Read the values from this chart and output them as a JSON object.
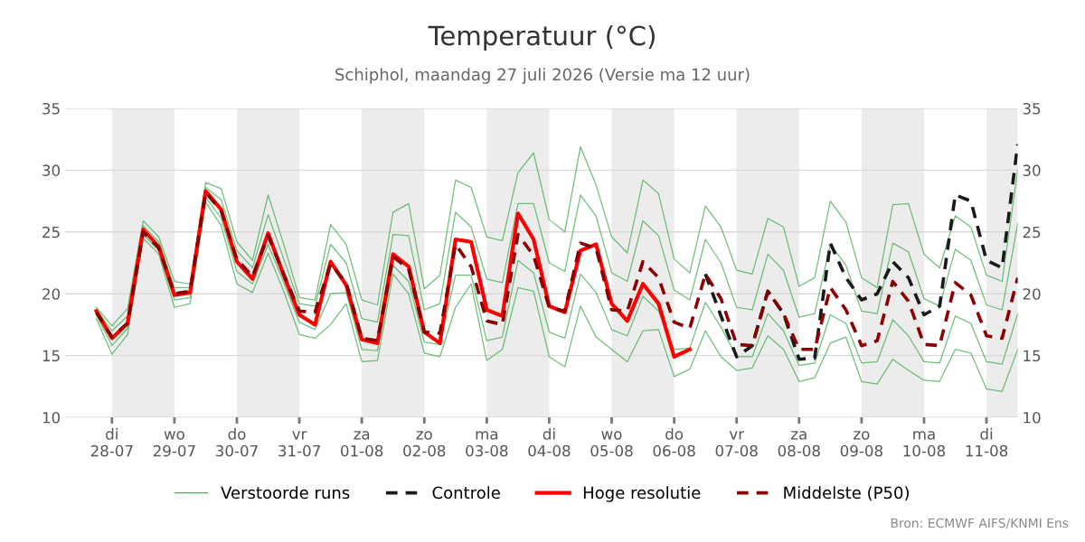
{
  "chart_data": {
    "type": "line",
    "title": "Temperatuur (°C)",
    "subtitle": "Schiphol, maandag 27 juli 2026 (Versie ma 12 uur)",
    "x": [
      "2026-07-27T18:00",
      "2026-07-28T00:00",
      "2026-07-28T06:00",
      "2026-07-28T12:00",
      "2026-07-28T18:00",
      "2026-07-29T00:00",
      "2026-07-29T06:00",
      "2026-07-29T12:00",
      "2026-07-29T18:00",
      "2026-07-30T00:00",
      "2026-07-30T06:00",
      "2026-07-30T12:00",
      "2026-07-30T18:00",
      "2026-07-31T00:00",
      "2026-07-31T06:00",
      "2026-07-31T12:00",
      "2026-07-31T18:00",
      "2026-08-01T00:00",
      "2026-08-01T06:00",
      "2026-08-01T12:00",
      "2026-08-01T18:00",
      "2026-08-02T00:00",
      "2026-08-02T06:00",
      "2026-08-02T12:00",
      "2026-08-02T18:00",
      "2026-08-03T00:00",
      "2026-08-03T06:00",
      "2026-08-03T12:00",
      "2026-08-03T18:00",
      "2026-08-04T00:00",
      "2026-08-04T06:00",
      "2026-08-04T12:00",
      "2026-08-04T18:00",
      "2026-08-05T00:00",
      "2026-08-05T06:00",
      "2026-08-05T12:00",
      "2026-08-05T18:00",
      "2026-08-06T00:00",
      "2026-08-06T06:00",
      "2026-08-06T12:00",
      "2026-08-06T18:00",
      "2026-08-07T00:00",
      "2026-08-07T06:00",
      "2026-08-07T12:00",
      "2026-08-07T18:00",
      "2026-08-08T00:00",
      "2026-08-08T06:00",
      "2026-08-08T12:00",
      "2026-08-08T18:00",
      "2026-08-09T00:00",
      "2026-08-09T06:00",
      "2026-08-09T12:00",
      "2026-08-09T18:00",
      "2026-08-10T00:00",
      "2026-08-10T06:00",
      "2026-08-10T12:00",
      "2026-08-10T18:00",
      "2026-08-11T00:00",
      "2026-08-11T06:00",
      "2026-08-11T12:00"
    ],
    "series": [
      {
        "name": "Verstoorde runs",
        "color": "#4caf5a",
        "line_style": "solid",
        "values": [
          18.9,
          17.4,
          18.8,
          25.9,
          24.6,
          21.0,
          20.8,
          29.0,
          28.5,
          24.2,
          22.7,
          28.0,
          24.0,
          19.7,
          19.5,
          25.6,
          24.0,
          19.5,
          19.1,
          26.6,
          27.3,
          20.4,
          21.5,
          29.2,
          28.6,
          24.6,
          24.3,
          29.8,
          31.4,
          26.0,
          25.0,
          31.9,
          28.8,
          24.6,
          23.3,
          29.2,
          28.1,
          22.8,
          21.7,
          27.1,
          25.4,
          21.9,
          21.6,
          26.1,
          25.4,
          20.6,
          21.3,
          27.5,
          25.8,
          21.3,
          20.5,
          27.2,
          27.3,
          23.2,
          22.1,
          26.3,
          25.4,
          21.5,
          21.0,
          30.0
        ]
      },
      {
        "color": "#4caf5a",
        "line_style": "solid",
        "values": [
          18.7,
          17.0,
          18.2,
          25.5,
          24.2,
          20.5,
          20.5,
          28.6,
          27.6,
          23.5,
          22.1,
          26.4,
          22.8,
          19.2,
          19.0,
          24.0,
          22.5,
          18.0,
          17.7,
          24.8,
          24.7,
          18.7,
          19.2,
          26.6,
          25.4,
          21.2,
          20.9,
          27.3,
          27.3,
          22.5,
          21.8,
          28.0,
          26.3,
          21.7,
          21.0,
          25.9,
          24.7,
          20.3,
          19.5,
          24.4,
          22.5,
          18.9,
          18.7,
          23.2,
          21.9,
          18.1,
          18.4,
          24.0,
          22.3,
          18.6,
          18.4,
          24.1,
          23.4,
          19.6,
          19.0,
          23.6,
          22.7,
          19.1,
          18.7,
          25.7
        ]
      },
      {
        "color": "#4caf5a",
        "line_style": "solid",
        "values": [
          18.3,
          15.8,
          17.2,
          24.8,
          23.5,
          19.5,
          19.7,
          27.8,
          26.1,
          21.8,
          20.8,
          24.0,
          20.9,
          17.7,
          17.1,
          20.0,
          20.1,
          15.5,
          15.4,
          22.3,
          21.0,
          16.1,
          15.9,
          21.5,
          21.5,
          16.2,
          16.5,
          22.7,
          21.7,
          16.9,
          16.4,
          21.6,
          20.1,
          17.1,
          16.6,
          19.8,
          18.6,
          15.5,
          15.6,
          19.3,
          17.3,
          14.9,
          14.9,
          18.4,
          17.0,
          14.2,
          14.4,
          18.3,
          17.6,
          14.4,
          14.5,
          17.9,
          16.6,
          14.5,
          14.4,
          18.2,
          17.6,
          14.5,
          14.3,
          18.4
        ]
      },
      {
        "color": "#4caf5a",
        "line_style": "solid",
        "values": [
          18.0,
          15.1,
          16.7,
          24.5,
          23.2,
          18.9,
          19.2,
          27.4,
          25.5,
          20.8,
          20.1,
          23.3,
          20.2,
          16.7,
          16.4,
          17.5,
          19.2,
          14.5,
          14.6,
          21.6,
          20.0,
          15.2,
          14.9,
          18.9,
          20.8,
          14.6,
          15.5,
          20.5,
          20.2,
          14.9,
          14.1,
          19.0,
          16.5,
          15.5,
          14.5,
          17.0,
          17.1,
          13.3,
          13.9,
          17.0,
          14.9,
          13.8,
          14.0,
          16.6,
          15.5,
          12.9,
          13.2,
          16.0,
          16.5,
          12.9,
          12.7,
          14.7,
          13.8,
          13.0,
          12.9,
          15.5,
          15.2,
          12.3,
          12.1,
          15.5
        ]
      },
      {
        "name": "Controle",
        "color": "#1a1a1a",
        "line_style": "dashed",
        "values": [
          null,
          null,
          null,
          null,
          null,
          null,
          null,
          null,
          null,
          null,
          null,
          null,
          null,
          null,
          null,
          null,
          null,
          null,
          null,
          null,
          null,
          null,
          null,
          null,
          null,
          null,
          null,
          null,
          null,
          null,
          null,
          null,
          null,
          null,
          null,
          null,
          null,
          null,
          null,
          21.6,
          18.2,
          14.9,
          15.8,
          20.2,
          18.4,
          14.7,
          14.8,
          24.1,
          21.3,
          19.5,
          20.0,
          22.6,
          21.3,
          18.3,
          19.0,
          28.0,
          27.5,
          22.7,
          22.1,
          32.1
        ]
      },
      {
        "name": "Hoge resolutie",
        "color": "#ff0000",
        "line_style": "solid",
        "values": [
          18.6,
          16.4,
          17.6,
          25.2,
          23.8,
          19.9,
          20.1,
          28.3,
          26.8,
          22.6,
          21.2,
          24.9,
          21.5,
          18.3,
          17.5,
          22.6,
          20.7,
          16.3,
          16.0,
          23.2,
          22.2,
          16.9,
          16.0,
          24.4,
          24.2,
          18.7,
          18.2,
          26.5,
          24.4,
          19.0,
          18.5,
          23.5,
          24.0,
          19.2,
          17.8,
          20.8,
          19.2,
          14.9,
          15.5,
          null,
          null,
          null,
          null,
          null,
          null,
          null,
          null,
          null,
          null,
          null,
          null,
          null,
          null,
          null,
          null,
          null,
          null,
          null,
          null,
          null
        ]
      },
      {
        "name": "Middelste (P50)",
        "color": "#8b0000",
        "line_style": "dashed",
        "values": [
          18.5,
          16.5,
          17.6,
          25.0,
          23.7,
          20.0,
          20.2,
          28.2,
          26.7,
          22.8,
          21.4,
          24.7,
          21.6,
          18.6,
          18.5,
          22.4,
          20.9,
          16.4,
          16.2,
          23.0,
          22.0,
          16.9,
          16.8,
          24.0,
          22.2,
          17.8,
          17.5,
          24.8,
          23.1,
          18.9,
          18.6,
          24.1,
          23.7,
          18.7,
          18.6,
          22.6,
          21.3,
          17.7,
          17.2,
          21.6,
          19.6,
          15.9,
          15.8,
          20.2,
          18.4,
          15.5,
          15.5,
          20.5,
          18.7,
          15.8,
          16.2,
          21.0,
          19.4,
          15.9,
          15.8,
          20.9,
          19.9,
          16.6,
          16.4,
          21.3
        ]
      }
    ],
    "xlim": [
      "2026-07-27T06:00",
      "2026-08-11T12:00"
    ],
    "xticks": [
      {
        "value": "2026-07-28",
        "label": "di\n28-07"
      },
      {
        "value": "2026-07-29",
        "label": "wo\n29-07"
      },
      {
        "value": "2026-07-30",
        "label": "do\n30-07"
      },
      {
        "value": "2026-07-31",
        "label": "vr\n31-07"
      },
      {
        "value": "2026-08-01",
        "label": "za\n01-08"
      },
      {
        "value": "2026-08-02",
        "label": "zo\n02-08"
      },
      {
        "value": "2026-08-03",
        "label": "ma\n03-08"
      },
      {
        "value": "2026-08-04",
        "label": "di\n04-08"
      },
      {
        "value": "2026-08-05",
        "label": "wo\n05-08"
      },
      {
        "value": "2026-08-06",
        "label": "do\n06-08"
      },
      {
        "value": "2026-08-07",
        "label": "vr\n07-08"
      },
      {
        "value": "2026-08-08",
        "label": "za\n08-08"
      },
      {
        "value": "2026-08-09",
        "label": "zo\n09-08"
      },
      {
        "value": "2026-08-10",
        "label": "ma\n10-08"
      },
      {
        "value": "2026-08-11",
        "label": "di\n11-08"
      }
    ],
    "ylim": [
      10,
      35
    ],
    "yticks": [
      10,
      15,
      20,
      25,
      30,
      35
    ],
    "y2lim": [
      10,
      35
    ],
    "y2ticks": [
      10,
      15,
      20,
      25,
      30,
      35
    ],
    "grid": "y",
    "legend": "bottom",
    "marker": "none",
    "bands": [
      {
        "axis": "x",
        "from": "2026-07-28",
        "to": "2026-07-29",
        "color": "#ececec"
      },
      {
        "axis": "x",
        "from": "2026-07-30",
        "to": "2026-07-31",
        "color": "#ececec"
      },
      {
        "axis": "x",
        "from": "2026-08-01",
        "to": "2026-08-02",
        "color": "#ececec"
      },
      {
        "axis": "x",
        "from": "2026-08-03",
        "to": "2026-08-04",
        "color": "#ececec"
      },
      {
        "axis": "x",
        "from": "2026-08-05",
        "to": "2026-08-06",
        "color": "#ececec"
      },
      {
        "axis": "x",
        "from": "2026-08-07",
        "to": "2026-08-08",
        "color": "#ececec"
      },
      {
        "axis": "x",
        "from": "2026-08-09",
        "to": "2026-08-10",
        "color": "#ececec"
      },
      {
        "axis": "x",
        "from": "2026-08-11",
        "to": "2026-08-11T12:00",
        "color": "#ececec"
      }
    ],
    "annotations": [
      "Bron: ECMWF AIFS/KNMI Ens"
    ]
  }
}
